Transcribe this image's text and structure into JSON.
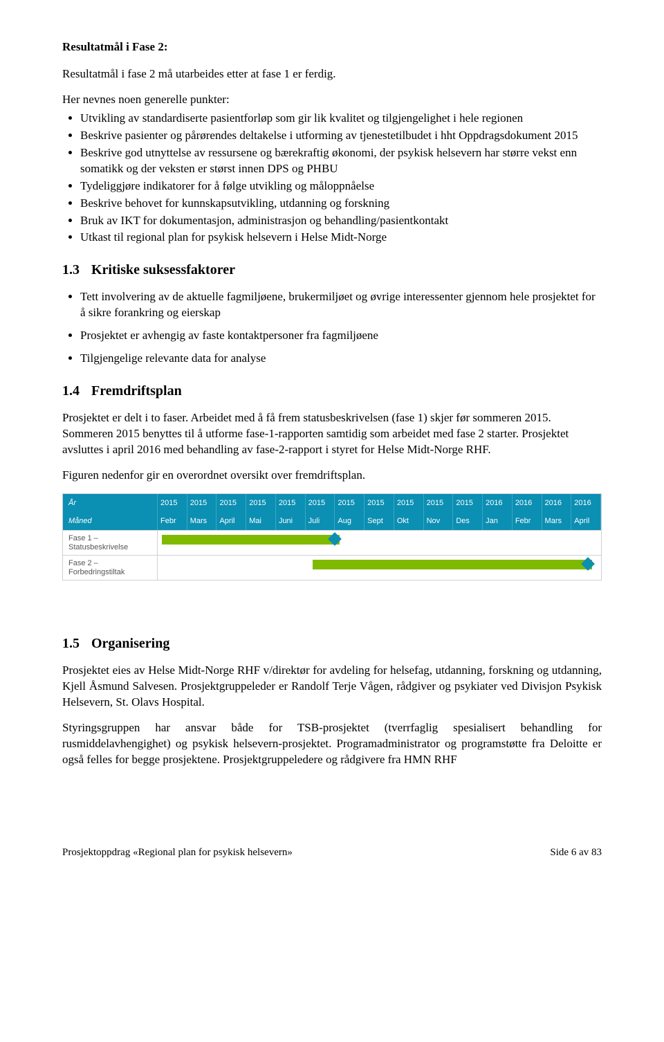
{
  "heading_resultatmal": "Resultatmål i Fase 2:",
  "intro_line": "Resultatmål i fase 2 må utarbeides etter at fase 1 er ferdig.",
  "nevnes_line": "Her nevnes noen generelle punkter:",
  "bullets1": [
    "Utvikling av standardiserte pasientforløp som gir lik kvalitet og tilgjengelighet i hele regionen",
    "Beskrive pasienter og pårørendes deltakelse i utforming av tjenestetilbudet i hht Oppdragsdokument 2015",
    "Beskrive god utnyttelse av ressursene og bærekraftig økonomi, der psykisk helsevern har større vekst enn somatikk og der veksten er størst innen DPS og PHBU",
    "Tydeliggjøre indikatorer for å følge utvikling og måloppnåelse",
    "Beskrive behovet for kunnskapsutvikling, utdanning og forskning",
    "Bruk av IKT for dokumentasjon, administrasjon og behandling/pasientkontakt",
    "Utkast til regional plan for psykisk helsevern i Helse Midt-Norge"
  ],
  "sec13_num": "1.3",
  "sec13_title": "Kritiske suksessfaktorer",
  "bullets2": [
    "Tett involvering av de aktuelle fagmiljøene, brukermiljøet og øvrige interessenter gjennom hele prosjektet for å sikre forankring og eierskap",
    "Prosjektet er avhengig av faste kontaktpersoner fra fagmiljøene",
    "Tilgjengelige relevante data for analyse"
  ],
  "sec14_num": "1.4",
  "sec14_title": "Fremdriftsplan",
  "para14a": "Prosjektet er delt i to faser. Arbeidet med å få frem statusbeskrivelsen (fase 1) skjer før sommeren 2015. Sommeren 2015 benyttes til å utforme fase-1-rapporten samtidig som arbeidet med fase 2 starter. Prosjektet avsluttes i april 2016 med behandling av fase-2-rapport i styret for Helse Midt-Norge RHF.",
  "para14b": "Figuren nedenfor gir en overordnet oversikt over fremdriftsplan.",
  "gantt": {
    "label_year": "År",
    "label_month": "Måned",
    "years": [
      "2015",
      "2015",
      "2015",
      "2015",
      "2015",
      "2015",
      "2015",
      "2015",
      "2015",
      "2015",
      "2015",
      "2016",
      "2016",
      "2016",
      "2016"
    ],
    "months": [
      "Febr",
      "Mars",
      "April",
      "Mai",
      "Juni",
      "Juli",
      "Aug",
      "Sept",
      "Okt",
      "Nov",
      "Des",
      "Jan",
      "Febr",
      "Mars",
      "April"
    ],
    "row1_label": "Fase 1 – Statusbeskrivelse",
    "row2_label": "Fase 2 – Forbedringstiltak",
    "header_bg": "#0b8fb3",
    "bar_color": "#7fba00",
    "diamond_color": "#0b8fb3",
    "row1_bar": {
      "start_pct": 1,
      "width_pct": 40
    },
    "row1_diamond_pct": 40,
    "row2_bar": {
      "start_pct": 35,
      "width_pct": 63
    },
    "row2_diamond_pct": 97
  },
  "sec15_num": "1.5",
  "sec15_title": "Organisering",
  "para15a": "Prosjektet eies av Helse Midt-Norge RHF v/direktør for avdeling for helsefag, utdanning, forskning og utdanning, Kjell Åsmund Salvesen. Prosjektgruppeleder er Randolf Terje Vågen, rådgiver og psykiater ved Divisjon Psykisk Helsevern, St. Olavs Hospital.",
  "para15b": "Styringsgruppen har ansvar både for TSB-prosjektet (tverrfaglig spesialisert behandling for rusmiddelavhengighet) og psykisk helsevern-prosjektet. Programadministrator og programstøtte fra Deloitte er også felles for begge prosjektene. Prosjektgruppeledere og rådgivere fra HMN RHF",
  "footer_left": "Prosjektoppdrag «Regional plan for psykisk helsevern»",
  "footer_right": "Side 6 av 83"
}
